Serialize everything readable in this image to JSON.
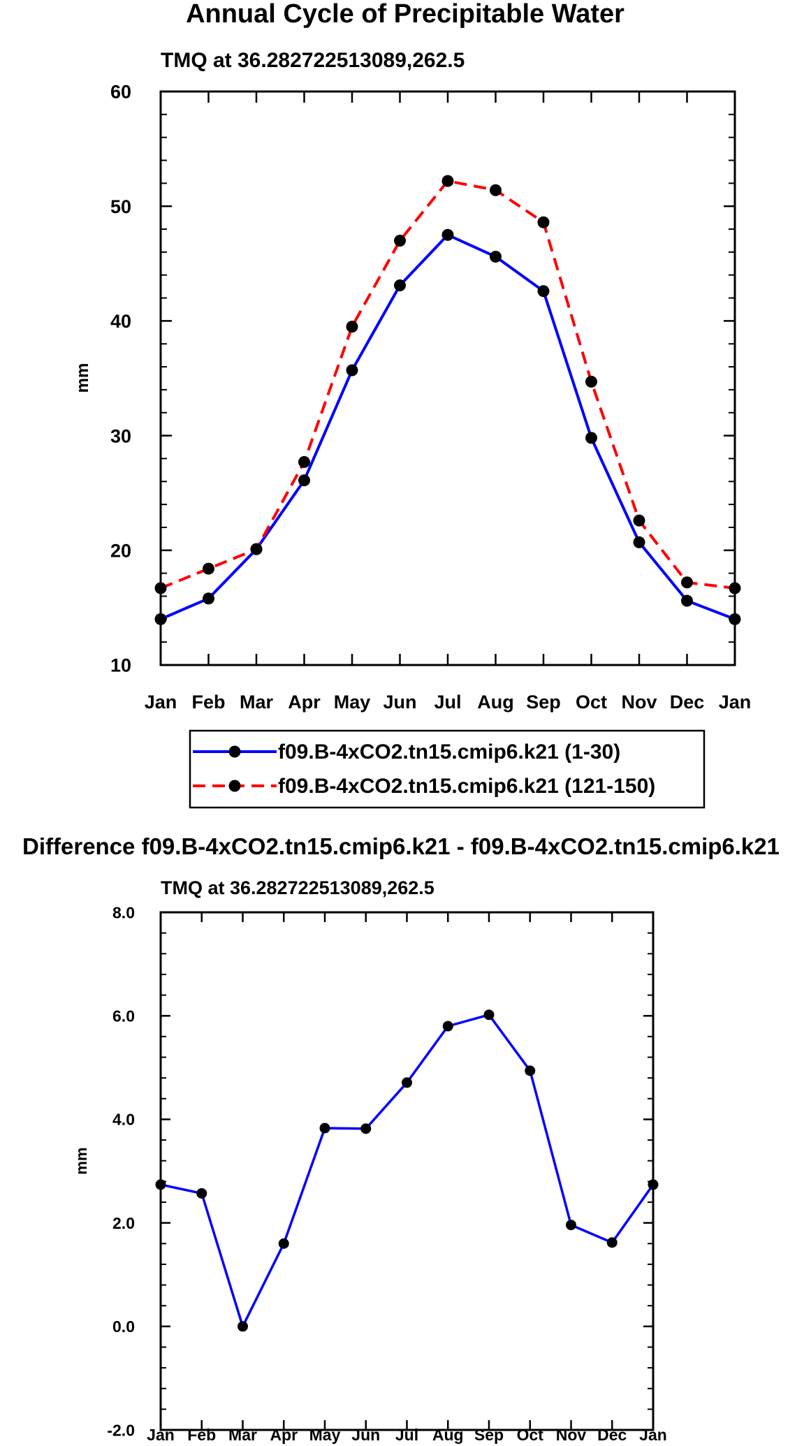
{
  "chart_data": [
    {
      "type": "line",
      "title": "Annual Cycle of Precipitable Water",
      "subtitle": "TMQ at 36.282722513089,262.5",
      "xlabel": "",
      "ylabel": "mm",
      "categories": [
        "Jan",
        "Feb",
        "Mar",
        "Apr",
        "May",
        "Jun",
        "Jul",
        "Aug",
        "Sep",
        "Oct",
        "Nov",
        "Dec",
        "Jan"
      ],
      "ylim": [
        10,
        60
      ],
      "yticks": [
        10,
        20,
        30,
        40,
        50,
        60
      ],
      "ytick_labels": [
        "10",
        "20",
        "30",
        "40",
        "50",
        "60"
      ],
      "series": [
        {
          "name": "f09.B-4xCO2.tn15.cmip6.k21 (1-30)",
          "color": "#0000ff",
          "dash": "solid",
          "values": [
            14.0,
            15.8,
            20.1,
            26.1,
            35.7,
            43.1,
            47.5,
            45.6,
            42.6,
            29.8,
            20.7,
            15.6,
            14.0
          ]
        },
        {
          "name": "f09.B-4xCO2.tn15.cmip6.k21 (121-150)",
          "color": "#ff0000",
          "dash": "dashed",
          "values": [
            16.7,
            18.4,
            20.1,
            27.7,
            39.5,
            47.0,
            52.2,
            51.4,
            48.6,
            34.7,
            22.6,
            17.2,
            16.7
          ]
        }
      ],
      "legend": "bottom"
    },
    {
      "type": "line",
      "title": "Difference f09.B-4xCO2.tn15.cmip6.k21 - f09.B-4xCO2.tn15.cmip6.k21",
      "subtitle": "TMQ at 36.282722513089,262.5",
      "xlabel": "",
      "ylabel": "mm",
      "categories": [
        "Jan",
        "Feb",
        "Mar",
        "Apr",
        "May",
        "Jun",
        "Jul",
        "Aug",
        "Sep",
        "Oct",
        "Nov",
        "Dec",
        "Jan"
      ],
      "ylim": [
        -2.0,
        8.0
      ],
      "yticks": [
        -2,
        0,
        2,
        4,
        6,
        8
      ],
      "ytick_labels": [
        "-2.0",
        "0.0",
        "2.0",
        "4.0",
        "6.0",
        "8.0"
      ],
      "series": [
        {
          "name": "Difference",
          "color": "#0000ff",
          "dash": "solid",
          "values": [
            2.74,
            2.57,
            0.0,
            1.6,
            3.83,
            3.82,
            4.71,
            5.8,
            6.02,
            4.94,
            1.96,
            1.62,
            2.74
          ]
        }
      ]
    }
  ]
}
